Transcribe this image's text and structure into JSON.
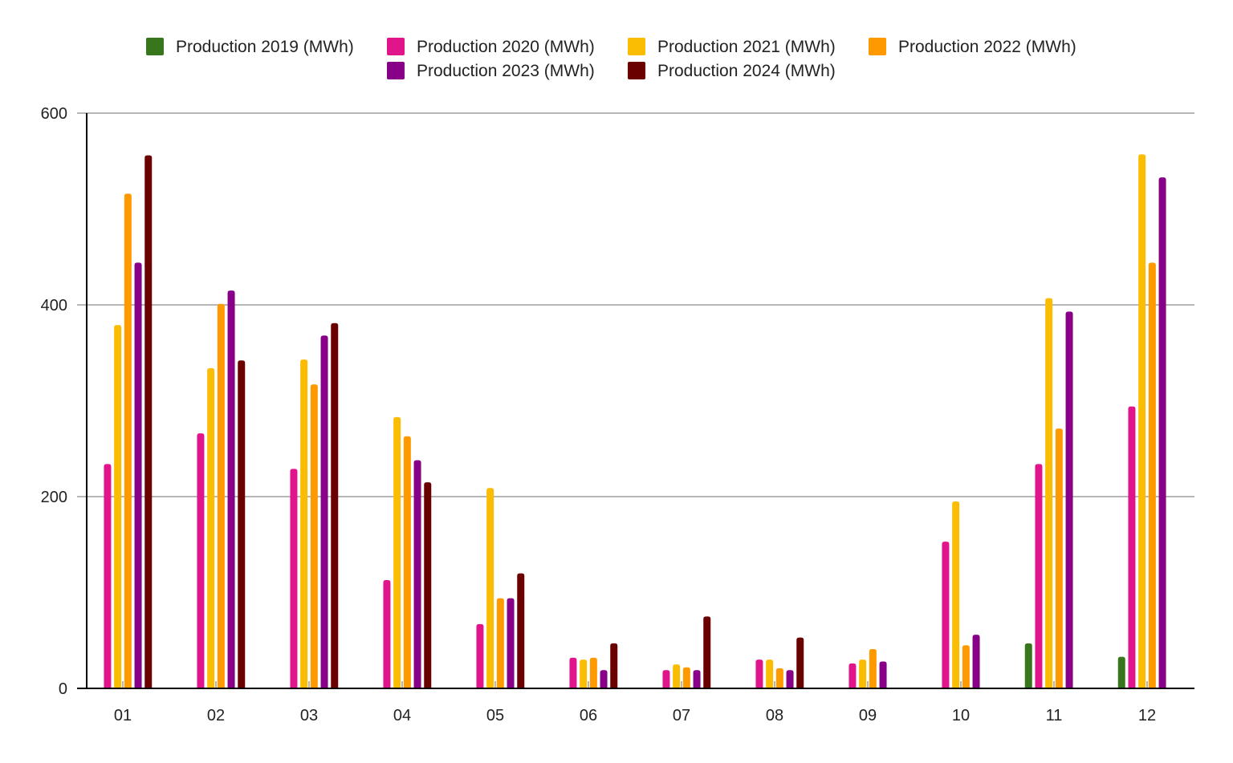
{
  "chart_data": {
    "type": "bar",
    "title": "",
    "xlabel": "",
    "ylabel": "",
    "ylim": [
      0,
      600
    ],
    "yticks": [
      0,
      200,
      400,
      600
    ],
    "grid": true,
    "legend_position": "top",
    "categories": [
      "01",
      "02",
      "03",
      "04",
      "05",
      "06",
      "07",
      "08",
      "09",
      "10",
      "11",
      "12"
    ],
    "series": [
      {
        "name": "Production 2019 (MWh)",
        "color": "#38761d",
        "values": [
          null,
          null,
          null,
          null,
          null,
          null,
          null,
          null,
          null,
          null,
          47,
          33
        ]
      },
      {
        "name": "Production 2020 (MWh)",
        "color": "#e0158c",
        "values": [
          234,
          266,
          229,
          113,
          67,
          32,
          19,
          30,
          26,
          153,
          234,
          294
        ]
      },
      {
        "name": "Production 2021 (MWh)",
        "color": "#fbbc04",
        "values": [
          379,
          334,
          343,
          283,
          209,
          30,
          25,
          30,
          30,
          195,
          407,
          557
        ]
      },
      {
        "name": "Production 2022 (MWh)",
        "color": "#ff9900",
        "values": [
          516,
          401,
          317,
          263,
          94,
          32,
          22,
          21,
          41,
          45,
          271,
          444
        ]
      },
      {
        "name": "Production 2023 (MWh)",
        "color": "#880088",
        "values": [
          444,
          415,
          368,
          238,
          94,
          19,
          19,
          19,
          28,
          56,
          393,
          533
        ]
      },
      {
        "name": "Production 2024 (MWh)",
        "color": "#6b0000",
        "values": [
          556,
          342,
          381,
          215,
          120,
          47,
          75,
          53,
          null,
          null,
          null,
          null
        ]
      }
    ]
  }
}
